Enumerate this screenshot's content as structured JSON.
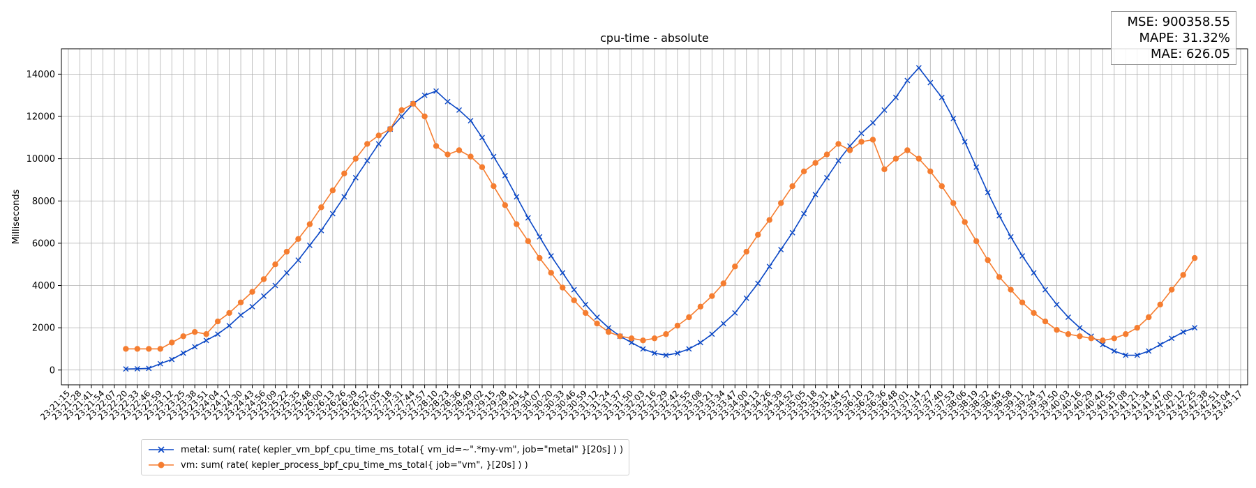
{
  "chart_data": {
    "type": "line",
    "title": "cpu-time - absolute",
    "xlabel": "",
    "ylabel": "Milliseconds",
    "ylim": [
      -700,
      15200
    ],
    "yticks": [
      0,
      2000,
      4000,
      6000,
      8000,
      10000,
      12000,
      14000
    ],
    "grid": true,
    "legend_position": "lower-left",
    "x_tick_labels": [
      "23:21:15",
      "23:21:28",
      "23:21:41",
      "23:21:54",
      "23:22:07",
      "23:22:20",
      "23:22:33",
      "23:22:46",
      "23:22:59",
      "23:23:12",
      "23:23:25",
      "23:23:38",
      "23:23:51",
      "23:24:04",
      "23:24:17",
      "23:24:30",
      "23:24:43",
      "23:24:56",
      "23:25:09",
      "23:25:22",
      "23:25:35",
      "23:25:48",
      "23:26:00",
      "23:26:13",
      "23:26:26",
      "23:26:39",
      "23:26:52",
      "23:27:05",
      "23:27:18",
      "23:27:31",
      "23:27:44",
      "23:27:57",
      "23:28:10",
      "23:28:23",
      "23:28:36",
      "23:28:49",
      "23:29:02",
      "23:29:15",
      "23:29:28",
      "23:29:41",
      "23:29:54",
      "23:30:07",
      "23:30:20",
      "23:30:33",
      "23:30:46",
      "23:30:59",
      "23:31:12",
      "23:31:24",
      "23:31:37",
      "23:31:50",
      "23:32:03",
      "23:32:16",
      "23:32:29",
      "23:32:42",
      "23:32:55",
      "23:33:08",
      "23:33:21",
      "23:33:34",
      "23:33:47",
      "23:34:00",
      "23:34:13",
      "23:34:26",
      "23:34:39",
      "23:34:52",
      "23:35:05",
      "23:35:18",
      "23:35:31",
      "23:35:44",
      "23:35:57",
      "23:36:10",
      "23:36:23",
      "23:36:36",
      "23:36:48",
      "23:37:01",
      "23:37:14",
      "23:37:27",
      "23:37:40",
      "23:37:53",
      "23:38:06",
      "23:38:19",
      "23:38:32",
      "23:38:45",
      "23:38:58",
      "23:39:11",
      "23:39:24",
      "23:39:37",
      "23:39:50",
      "23:40:03",
      "23:40:16",
      "23:40:29",
      "23:40:42",
      "23:40:55",
      "23:41:08",
      "23:41:21",
      "23:41:34",
      "23:41:47",
      "23:42:00",
      "23:42:12",
      "23:42:25",
      "23:42:38",
      "23:42:51",
      "23:43:04",
      "23:43:17"
    ],
    "series": [
      {
        "name": "metal: sum( rate( kepler_vm_bpf_cpu_time_ms_total{ vm_id=~\".*my-vm\", job=\"metal\" }[20s] ) )",
        "color": "#0a47c6",
        "marker": "x",
        "x_start_index": 5,
        "x_end_index": 98,
        "values": [
          50,
          60,
          80,
          300,
          500,
          800,
          1100,
          1400,
          1700,
          2100,
          2600,
          3000,
          3500,
          4000,
          4600,
          5200,
          5900,
          6600,
          7400,
          8200,
          9100,
          9900,
          10700,
          11400,
          12000,
          12600,
          13000,
          13200,
          12700,
          12300,
          11800,
          11000,
          10100,
          9200,
          8200,
          7200,
          6300,
          5400,
          4600,
          3800,
          3100,
          2500,
          2000,
          1600,
          1300,
          1000,
          800,
          700,
          800,
          1000,
          1300,
          1700,
          2200,
          2700,
          3400,
          4100,
          4900,
          5700,
          6500,
          7400,
          8300,
          9100,
          9900,
          10600,
          11200,
          11700,
          12300,
          12900,
          13700,
          14300,
          13600,
          12900,
          11900,
          10800,
          9600,
          8400,
          7300,
          6300,
          5400,
          4600,
          3800,
          3100,
          2500,
          2000,
          1600,
          1200,
          900,
          700,
          700,
          900,
          1200,
          1500,
          1800,
          2000
        ]
      },
      {
        "name": "vm: sum( rate( kepler_process_bpf_cpu_time_ms_total{ job=\"vm\", }[20s] ) )",
        "color": "#f57d30",
        "marker": "o",
        "x_start_index": 5,
        "x_end_index": 98,
        "values": [
          1000,
          1000,
          1000,
          1000,
          1300,
          1600,
          1800,
          1700,
          2300,
          2700,
          3200,
          3700,
          4300,
          5000,
          5600,
          6200,
          6900,
          7700,
          8500,
          9300,
          10000,
          10700,
          11100,
          11400,
          12300,
          12600,
          12000,
          10600,
          10200,
          10400,
          10100,
          9600,
          8700,
          7800,
          6900,
          6100,
          5300,
          4600,
          3900,
          3300,
          2700,
          2200,
          1800,
          1600,
          1500,
          1400,
          1500,
          1700,
          2100,
          2500,
          3000,
          3500,
          4100,
          4900,
          5600,
          6400,
          7100,
          7900,
          8700,
          9400,
          9800,
          10200,
          10700,
          10400,
          10800,
          10900,
          9500,
          10000,
          10400,
          10000,
          9400,
          8700,
          7900,
          7000,
          6100,
          5200,
          4400,
          3800,
          3200,
          2700,
          2300,
          1900,
          1700,
          1600,
          1500,
          1400,
          1500,
          1700,
          2000,
          2500,
          3100,
          3800,
          4500,
          5300
        ]
      }
    ]
  },
  "metrics": {
    "mse": "MSE: 900358.55",
    "mape": "MAPE: 31.32%",
    "mae": "MAE: 626.05"
  },
  "legend": {
    "metal_label": "metal: sum( rate( kepler_vm_bpf_cpu_time_ms_total{ vm_id=~\".*my-vm\", job=\"metal\" }[20s] ) )",
    "vm_label": "vm: sum( rate( kepler_process_bpf_cpu_time_ms_total{ job=\"vm\", }[20s] ) )"
  }
}
